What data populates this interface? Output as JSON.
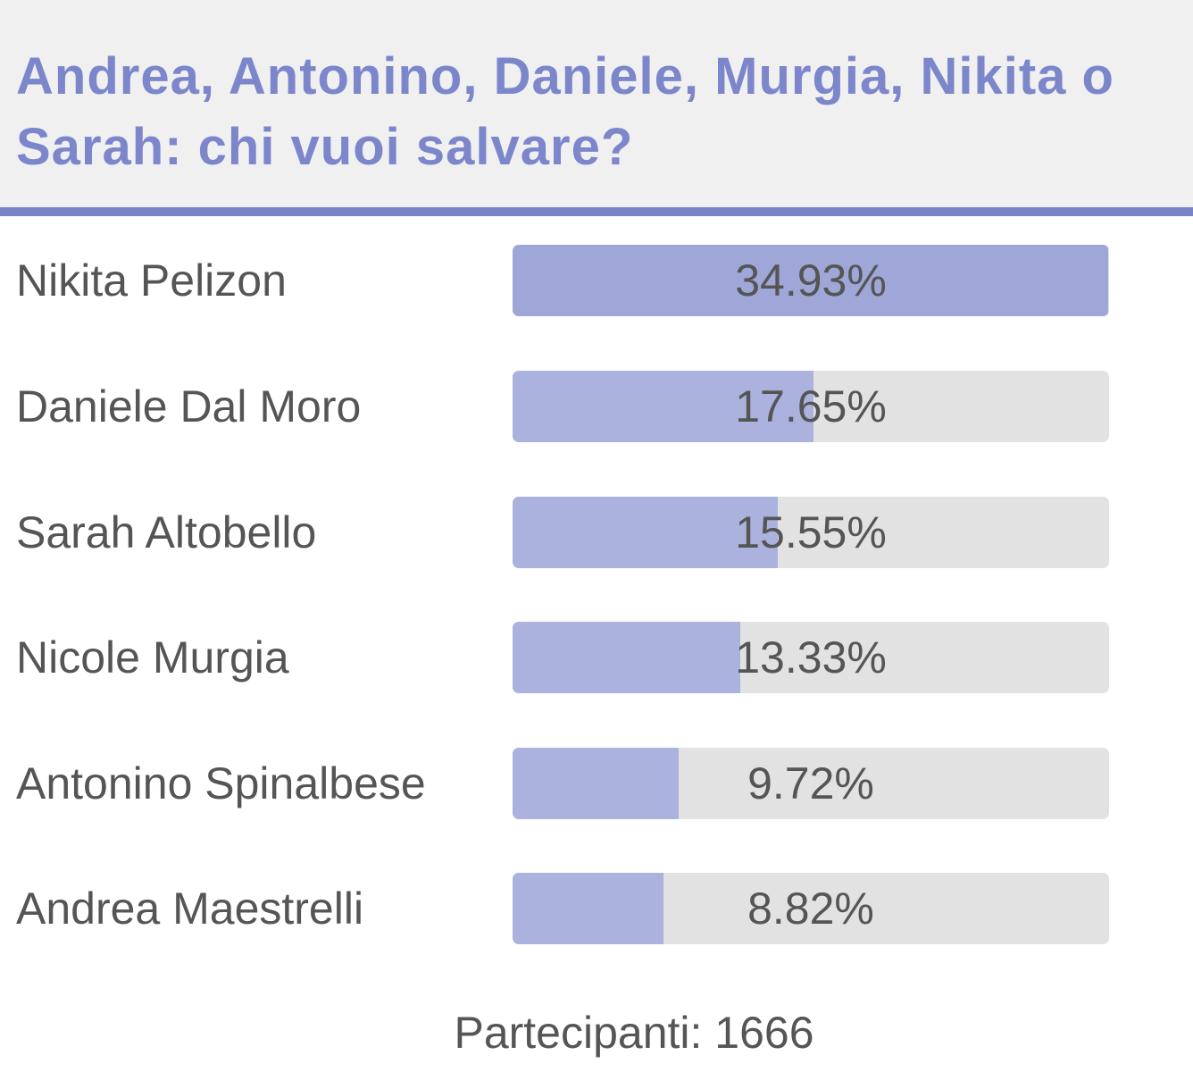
{
  "poll": {
    "title": "Andrea, Antonino, Daniele, Murgia, Nikita o Sarah: chi vuoi salvare?",
    "options": [
      {
        "name": "Nikita Pelizon",
        "percent_label": "34.93%",
        "percent": 34.93
      },
      {
        "name": "Daniele Dal Moro",
        "percent_label": "17.65%",
        "percent": 17.65
      },
      {
        "name": "Sarah Altobello",
        "percent_label": "15.55%",
        "percent": 15.55
      },
      {
        "name": "Nicole Murgia",
        "percent_label": "13.33%",
        "percent": 13.33
      },
      {
        "name": "Antonino Spinalbese",
        "percent_label": "9.72%",
        "percent": 9.72
      },
      {
        "name": "Andrea Maestrelli",
        "percent_label": "8.82%",
        "percent": 8.82
      }
    ],
    "participants": "Partecipanti: 1666"
  },
  "colors": {
    "title": "#7c86cb",
    "rule": "#7a82c6",
    "bar_fill": "#abb2de",
    "bar_fill_lead": "#9ea7d8",
    "bar_track": "#e2e2e2",
    "text": "#555555",
    "header_bg": "#f0f0f0"
  }
}
